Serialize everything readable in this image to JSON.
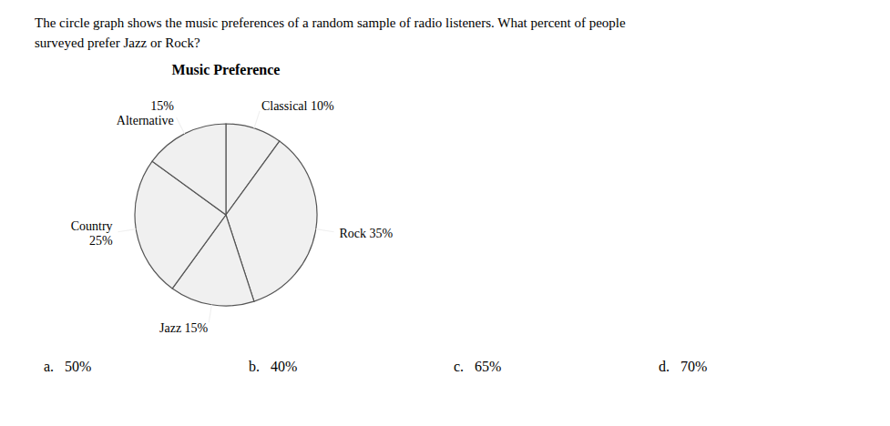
{
  "chart_data": {
    "type": "pie",
    "title": "Music Preference",
    "subtitle": "The circle graph shows the music preferences of a random sample of radio listeners. What percent of people\nsurveyed prefer Jazz or Rock?",
    "categories": [
      "Classical",
      "Rock",
      "Jazz",
      "Country",
      "Alternative"
    ],
    "values": [
      10,
      35,
      15,
      25,
      15
    ],
    "value_labels": [
      "Classical 10%",
      "Rock 35%",
      "Jazz 15%",
      "Country\n25%",
      "15%\nAlternative"
    ],
    "colors": [
      "#f0f0f0",
      "#f0f0f0",
      "#f0f0f0",
      "#f0f0f0",
      "#f0f0f0"
    ],
    "data_labels": true,
    "annotations": [
      "a.   50%",
      "b.   40%",
      "c.   65%",
      "d.   70%"
    ]
  }
}
